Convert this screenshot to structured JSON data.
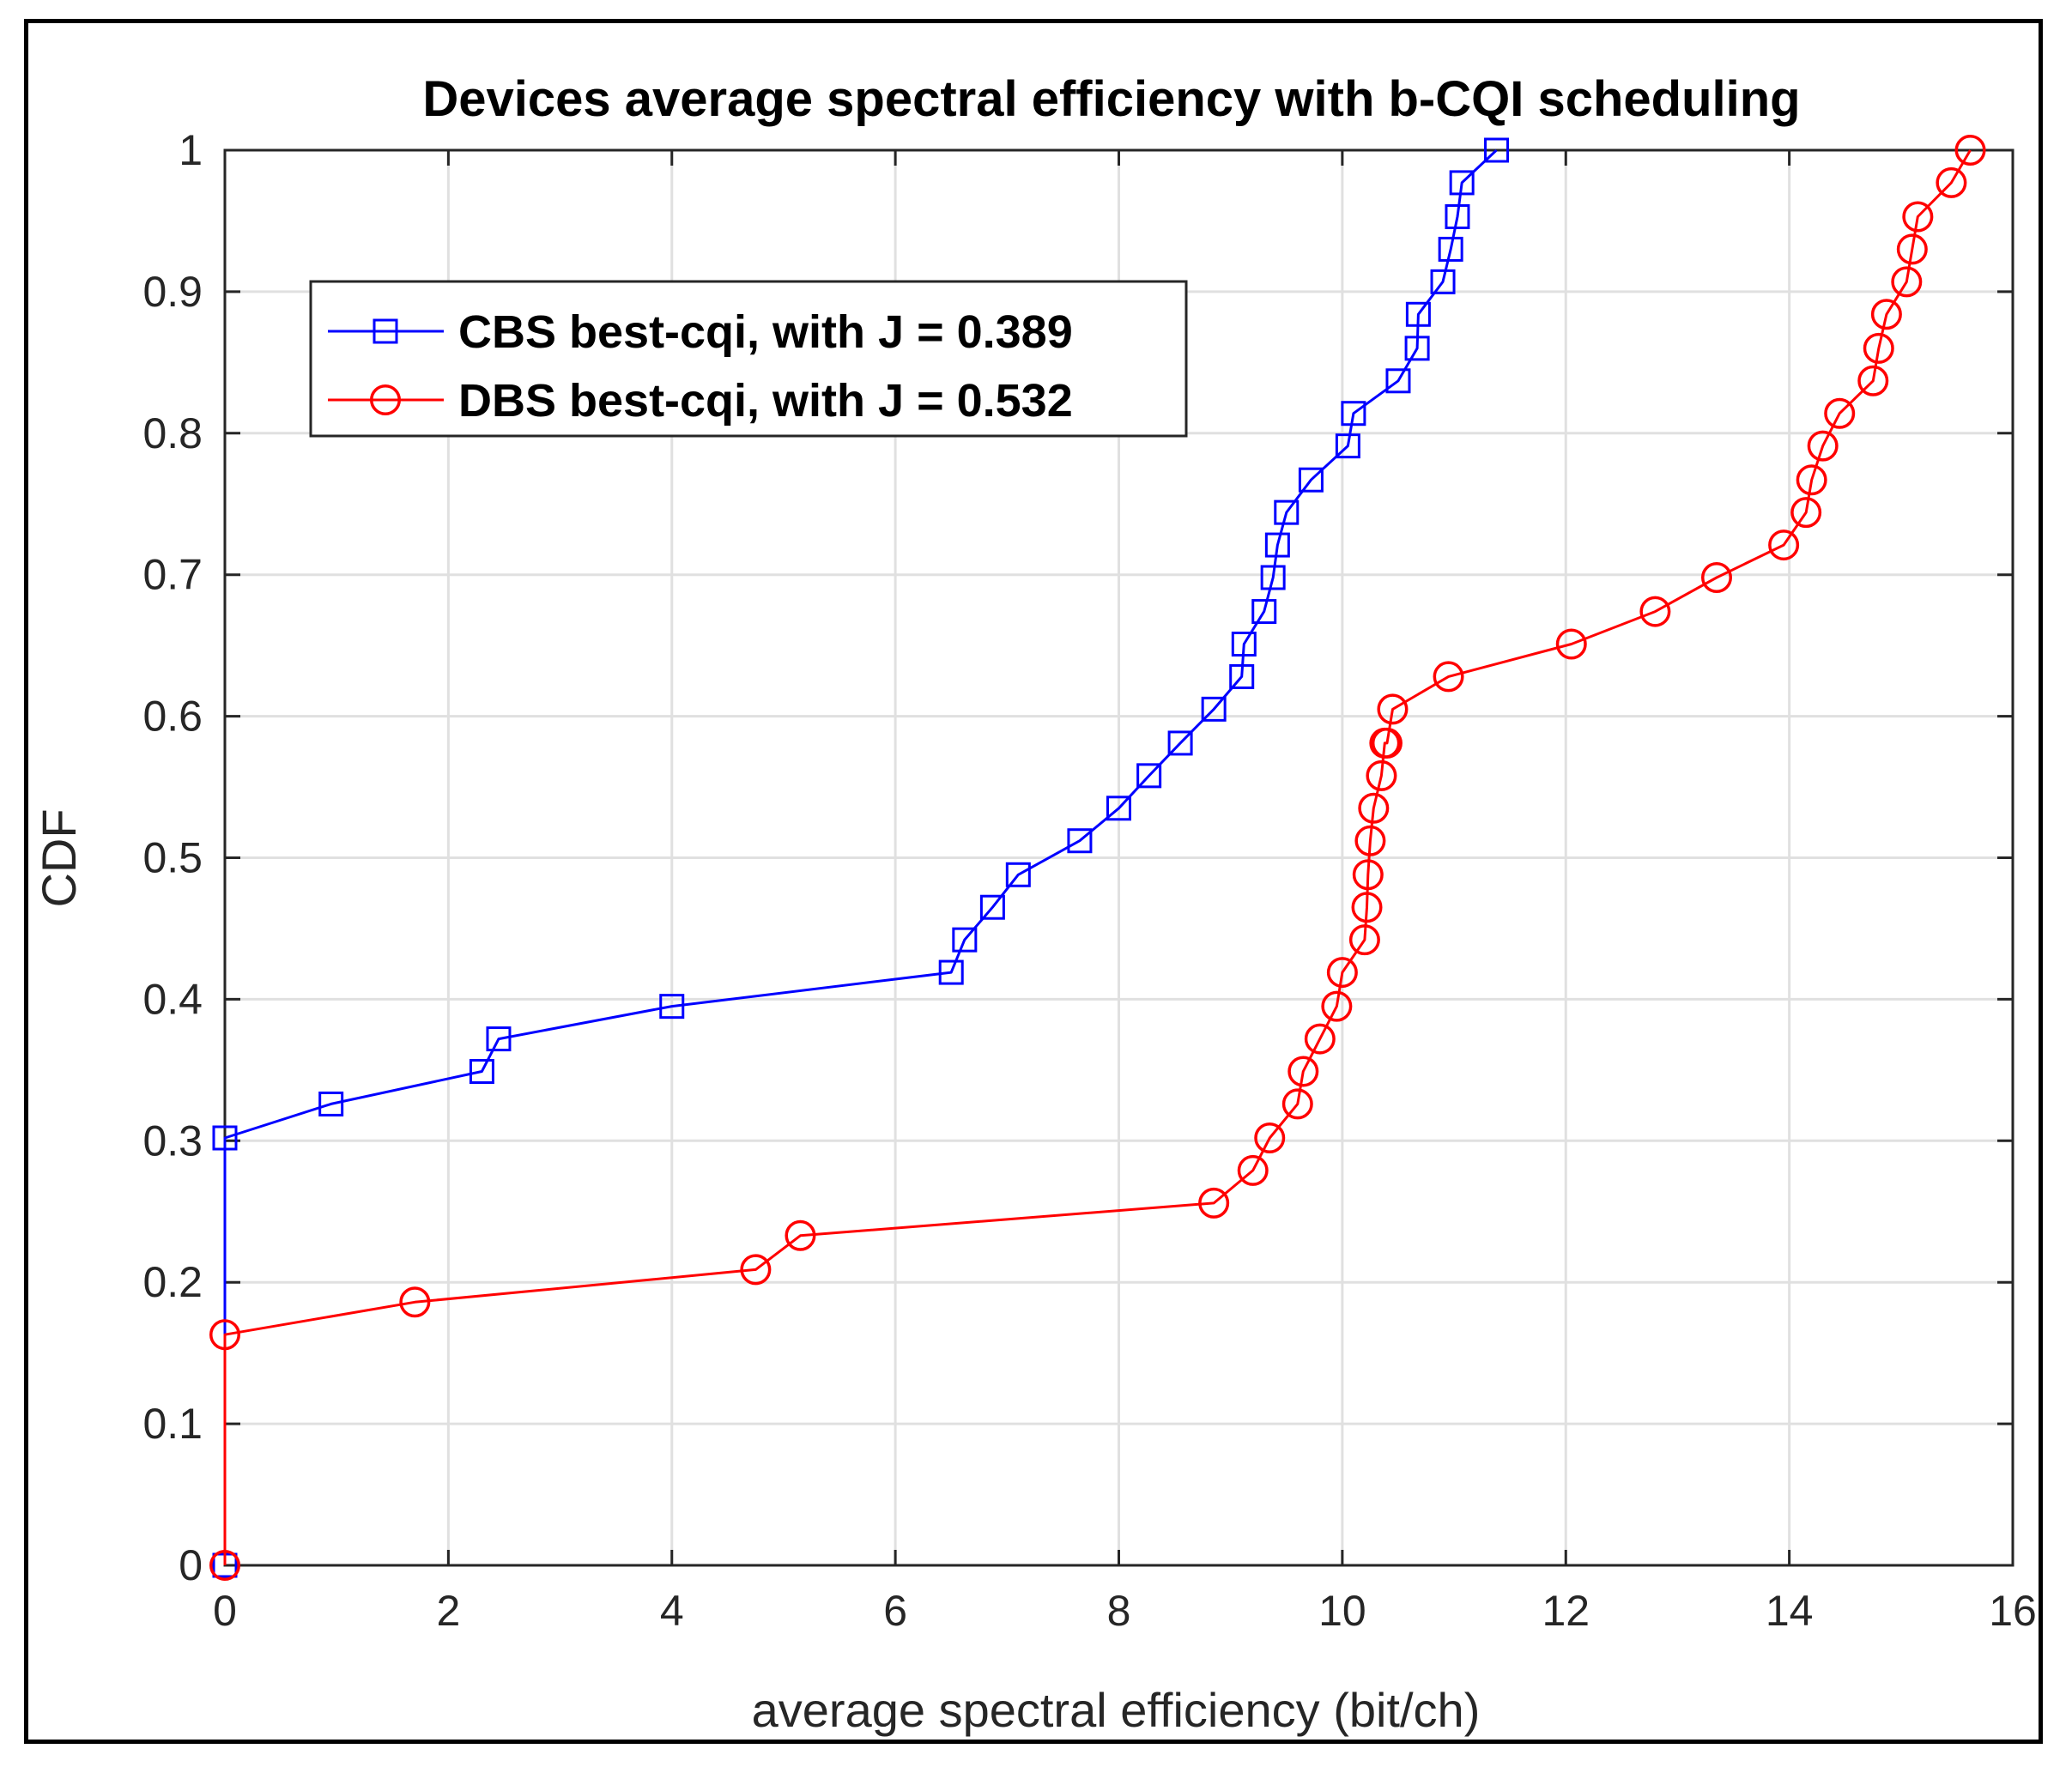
{
  "chart_data": {
    "type": "line",
    "title": "Devices average spectral efficiency with b-CQI scheduling",
    "xlabel": "average spectral efficiency (bit/ch)",
    "ylabel": "CDF",
    "xlim": [
      0,
      16
    ],
    "ylim": [
      0,
      1
    ],
    "xticks": [
      0,
      2,
      4,
      6,
      8,
      10,
      12,
      14,
      16
    ],
    "yticks": [
      0,
      0.1,
      0.2,
      0.3,
      0.4,
      0.5,
      0.6,
      0.7,
      0.8,
      0.9,
      1
    ],
    "grid": true,
    "legend_position": "top-left",
    "series": [
      {
        "name": "CBS best-cqi, with J = 0.389",
        "color": "#0000ff",
        "marker": "square",
        "x": [
          0,
          0,
          0.95,
          2.3,
          2.45,
          4.0,
          6.5,
          6.62,
          6.87,
          7.1,
          7.65,
          8.0,
          8.27,
          8.55,
          8.85,
          9.1,
          9.12,
          9.3,
          9.38,
          9.42,
          9.5,
          9.72,
          10.05,
          10.1,
          10.5,
          10.67,
          10.68,
          10.9,
          10.97,
          11.03,
          11.07,
          11.38
        ],
        "y": [
          0,
          0.302,
          0.326,
          0.349,
          0.372,
          0.395,
          0.419,
          0.442,
          0.465,
          0.488,
          0.512,
          0.535,
          0.558,
          0.581,
          0.605,
          0.628,
          0.651,
          0.674,
          0.698,
          0.721,
          0.744,
          0.767,
          0.791,
          0.814,
          0.837,
          0.86,
          0.884,
          0.907,
          0.93,
          0.953,
          0.977,
          1.0
        ]
      },
      {
        "name": "DBS best-cqi, with J = 0.532",
        "color": "#ff0000",
        "marker": "circle",
        "x": [
          0,
          0,
          1.7,
          4.75,
          5.15,
          8.85,
          9.2,
          9.35,
          9.6,
          9.65,
          9.8,
          9.95,
          10.0,
          10.2,
          10.22,
          10.23,
          10.25,
          10.28,
          10.35,
          10.38,
          10.4,
          10.45,
          10.95,
          12.05,
          12.8,
          13.35,
          13.95,
          14.15,
          14.2,
          14.3,
          14.45,
          14.75,
          14.8,
          14.87,
          15.05,
          15.1,
          15.15,
          15.45,
          15.62
        ],
        "y": [
          0,
          0.163,
          0.186,
          0.209,
          0.233,
          0.256,
          0.279,
          0.302,
          0.326,
          0.349,
          0.372,
          0.395,
          0.419,
          0.442,
          0.465,
          0.488,
          0.512,
          0.535,
          0.558,
          0.581,
          0.581,
          0.605,
          0.628,
          0.651,
          0.674,
          0.698,
          0.721,
          0.744,
          0.767,
          0.791,
          0.814,
          0.837,
          0.86,
          0.884,
          0.907,
          0.93,
          0.953,
          0.977,
          1.0
        ]
      }
    ]
  }
}
